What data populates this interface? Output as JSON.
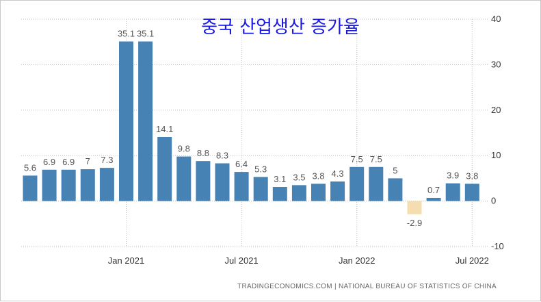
{
  "colors": {
    "positive_bar": "#4682b4",
    "negative_bar": "#f4deb0",
    "gridline": "#bbbbbb",
    "title": "#1a1adf",
    "axis_text": "#333333",
    "data_label": "#555555"
  },
  "chart_data": {
    "type": "bar",
    "title": "중국 산업생산 증가율",
    "xlabel": "",
    "ylabel": "",
    "categories": [
      "2020-08",
      "2020-09",
      "2020-10",
      "2020-11",
      "2020-12",
      "2021-01",
      "2021-02",
      "2021-03",
      "2021-04",
      "2021-05",
      "2021-06",
      "2021-07",
      "2021-08",
      "2021-09",
      "2021-10",
      "2021-11",
      "2021-12",
      "2022-01",
      "2022-02",
      "2022-03",
      "2022-04",
      "2022-05",
      "2022-06",
      "2022-07"
    ],
    "values": [
      5.6,
      6.9,
      6.9,
      7,
      7.3,
      35.1,
      35.1,
      14.1,
      9.8,
      8.8,
      8.3,
      6.4,
      5.3,
      3.1,
      3.5,
      3.8,
      4.3,
      7.5,
      7.5,
      5,
      -2.9,
      0.7,
      3.9,
      3.8
    ],
    "data_labels": [
      "5.6",
      "6.9",
      "6.9",
      "7",
      "7.3",
      "35.1",
      "35.1",
      "14.1",
      "9.8",
      "8.8",
      "8.3",
      "6.4",
      "5.3",
      "3.1",
      "3.5",
      "3.8",
      "4.3",
      "7.5",
      "7.5",
      "5",
      "-2.9",
      "0.7",
      "3.9",
      "3.8"
    ],
    "ylim": [
      -10,
      40
    ],
    "y_ticks": [
      "-10",
      "0",
      "10",
      "20",
      "30",
      "40"
    ],
    "x_tick_labels": [
      {
        "category": "2021-01",
        "label": "Jan 2021"
      },
      {
        "category": "2021-07",
        "label": "Jul 2021"
      },
      {
        "category": "2022-01",
        "label": "Jan 2022"
      },
      {
        "category": "2022-07",
        "label": "Jul 2022"
      }
    ],
    "y_axis_position": "right",
    "grid": true,
    "legend": "none"
  },
  "source": "TRADINGECONOMICS.COM  |  NATIONAL BUREAU OF STATISTICS OF CHINA"
}
